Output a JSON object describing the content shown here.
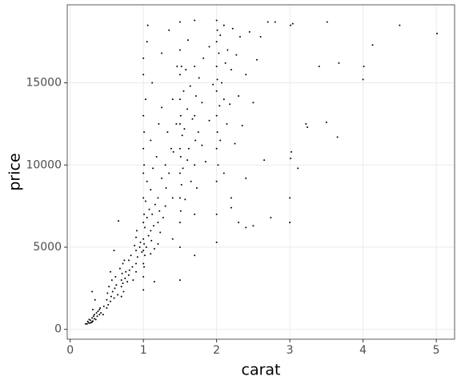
{
  "chart_data": {
    "type": "scatter",
    "x_label": "carat",
    "y_label": "price",
    "xlim": [
      -0.04,
      5.25
    ],
    "ylim": [
      -599,
      19748
    ],
    "xticks": [
      0,
      1,
      2,
      3,
      4,
      5
    ],
    "yticks": [
      0,
      5000,
      10000,
      15000
    ],
    "grid": true,
    "color": "#000000",
    "x": [
      0.23,
      0.21,
      0.25,
      0.3,
      0.31,
      0.3,
      0.32,
      0.33,
      0.35,
      0.36,
      0.38,
      0.4,
      0.4,
      0.41,
      0.42,
      0.27,
      0.28,
      0.31,
      0.34,
      0.3,
      0.26,
      0.24,
      0.29,
      0.33,
      0.37,
      0.5,
      0.5,
      0.51,
      0.52,
      0.53,
      0.55,
      0.56,
      0.57,
      0.6,
      0.61,
      0.62,
      0.65,
      0.7,
      0.7,
      0.7,
      0.71,
      0.72,
      0.72,
      0.73,
      0.75,
      0.76,
      0.78,
      0.8,
      0.8,
      0.81,
      0.83,
      0.85,
      0.9,
      0.9,
      0.9,
      0.9,
      0.91,
      0.92,
      0.95,
      0.96,
      0.98,
      0.66,
      0.6,
      0.55,
      0.45,
      0.46,
      0.58,
      0.63,
      0.68,
      0.74,
      0.86,
      0.88,
      1.0,
      1.0,
      1.0,
      1.0,
      1.0,
      1.0,
      1.0,
      1.0,
      1.0,
      1.0,
      1.0,
      1.01,
      1.01,
      1.01,
      1.01,
      1.01,
      1.02,
      1.02,
      1.03,
      1.03,
      1.04,
      1.05,
      1.05,
      1.06,
      1.07,
      1.08,
      1.1,
      1.1,
      1.1,
      1.1,
      1.11,
      1.12,
      1.13,
      1.14,
      1.15,
      1.16,
      1.18,
      1.2,
      1.2,
      1.2,
      1.21,
      1.22,
      1.23,
      1.25,
      1.25,
      1.27,
      1.3,
      1.3,
      1.31,
      1.33,
      1.35,
      1.38,
      1.4,
      1.4,
      1.41,
      1.45,
      1.46,
      1.15,
      1.0,
      1.05,
      1.12,
      1.25,
      1.35,
      1.4,
      1.5,
      1.5,
      1.5,
      1.5,
      1.5,
      1.5,
      1.5,
      1.5,
      1.5,
      1.5,
      1.5,
      1.51,
      1.51,
      1.51,
      1.52,
      1.52,
      1.53,
      1.54,
      1.55,
      1.56,
      1.57,
      1.58,
      1.6,
      1.6,
      1.61,
      1.62,
      1.64,
      1.65,
      1.67,
      1.7,
      1.7,
      1.7,
      1.7,
      1.7,
      1.7,
      1.71,
      1.72,
      1.73,
      1.75,
      1.76,
      1.8,
      1.8,
      1.82,
      1.85,
      1.9,
      1.9,
      1.95,
      2.0,
      2.0,
      2.0,
      2.0,
      2.0,
      2.0,
      2.0,
      2.0,
      2.0,
      2.01,
      2.01,
      2.01,
      2.02,
      2.03,
      2.04,
      2.05,
      2.05,
      2.07,
      2.1,
      2.1,
      2.1,
      2.12,
      2.14,
      2.15,
      2.18,
      2.2,
      2.2,
      2.22,
      2.25,
      2.27,
      2.3,
      2.3,
      2.32,
      2.35,
      2.4,
      2.4,
      2.45,
      2.5,
      2.5,
      2.55,
      2.6,
      2.65,
      2.7,
      2.74,
      2.8,
      2.2,
      2.4,
      3.0,
      3.0,
      3.01,
      3.01,
      3.02,
      3.04,
      3.11,
      3.22,
      3.24,
      3.4,
      3.5,
      3.51,
      3.65,
      3.67,
      4.0,
      4.01,
      4.13,
      4.5,
      5.01
    ],
    "y": [
      326,
      340,
      400,
      450,
      500,
      700,
      800,
      900,
      600,
      1000,
      1100,
      900,
      1200,
      1300,
      1000,
      380,
      550,
      1200,
      1800,
      2300,
      600,
      480,
      420,
      650,
      800,
      1300,
      1800,
      2200,
      1500,
      2600,
      1700,
      2000,
      3000,
      1900,
      2500,
      3200,
      2100,
      2000,
      2600,
      3000,
      3400,
      2800,
      4000,
      2300,
      3100,
      3500,
      2900,
      3300,
      4200,
      3600,
      4500,
      3800,
      3500,
      4000,
      4800,
      5600,
      6000,
      4400,
      5000,
      5300,
      4700,
      6600,
      4800,
      3500,
      900,
      1400,
      2300,
      2700,
      3700,
      4200,
      3000,
      5100,
      3200,
      4000,
      4800,
      5500,
      6500,
      8000,
      9500,
      11000,
      13000,
      15500,
      16500,
      3800,
      5200,
      7000,
      10000,
      12000,
      4500,
      6200,
      7800,
      14000,
      5000,
      6800,
      9000,
      18500,
      5700,
      7300,
      4600,
      6000,
      8500,
      11500,
      5400,
      7000,
      9800,
      6300,
      4900,
      7600,
      10500,
      5200,
      6500,
      8000,
      12500,
      7200,
      5900,
      9200,
      13500,
      6800,
      7500,
      10000,
      8600,
      12000,
      9500,
      11000,
      8000,
      14000,
      10800,
      12500,
      16000,
      2900,
      2400,
      17500,
      15000,
      16800,
      18200,
      5500,
      3000,
      5000,
      6500,
      8000,
      9500,
      11000,
      12500,
      14000,
      15500,
      17000,
      18700,
      7200,
      10500,
      13000,
      8800,
      16000,
      11800,
      9800,
      14500,
      12200,
      7900,
      15800,
      10300,
      13400,
      17600,
      11000,
      14800,
      9000,
      12800,
      4500,
      7000,
      10000,
      13000,
      16000,
      18800,
      11500,
      14200,
      8600,
      12000,
      15300,
      11200,
      13800,
      16500,
      10200,
      12700,
      17200,
      14900,
      5300,
      7000,
      9000,
      11000,
      13000,
      14500,
      16000,
      17500,
      18800,
      12000,
      15200,
      18200,
      10000,
      16800,
      13600,
      17900,
      11500,
      15000,
      9500,
      14000,
      18500,
      16200,
      12500,
      17000,
      13700,
      15800,
      8000,
      18300,
      11300,
      16700,
      14200,
      6500,
      17800,
      12400,
      15500,
      9200,
      18100,
      6300,
      13800,
      16400,
      17800,
      10300,
      18700,
      6800,
      18700,
      7400,
      6200,
      6500,
      8000,
      10400,
      18500,
      10800,
      18600,
      9800,
      12500,
      12300,
      16000,
      12600,
      18700,
      11700,
      16200,
      15200,
      16000,
      17300,
      18500,
      18000
    ]
  }
}
